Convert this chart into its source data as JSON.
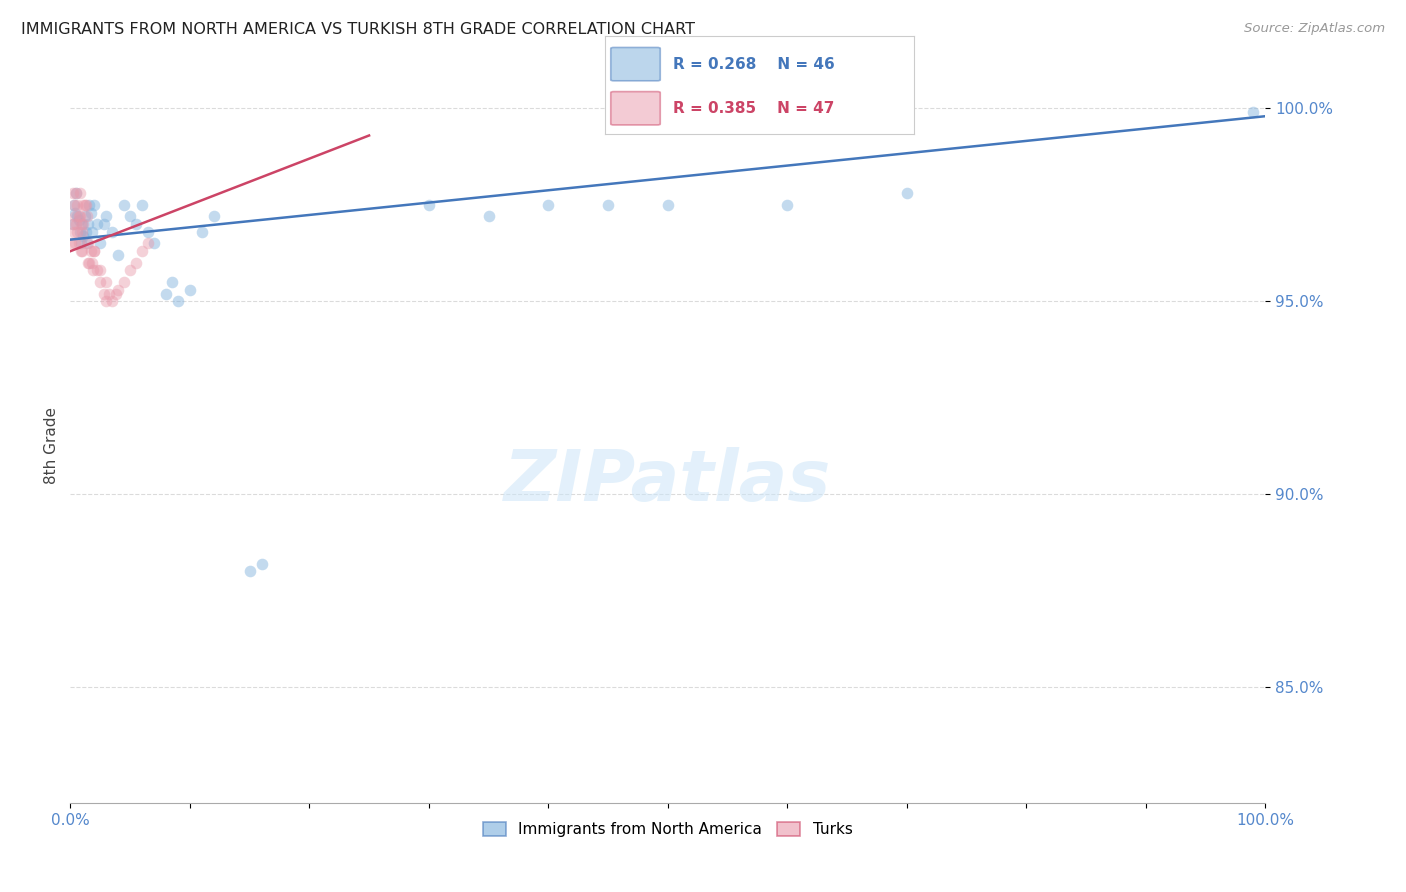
{
  "title": "IMMIGRANTS FROM NORTH AMERICA VS TURKISH 8TH GRADE CORRELATION CHART",
  "source": "Source: ZipAtlas.com",
  "ylabel": "8th Grade",
  "xlim": [
    0.0,
    1.0
  ],
  "ylim": [
    0.82,
    1.005
  ],
  "ytick_values": [
    0.85,
    0.9,
    0.95,
    1.0
  ],
  "ytick_labels": [
    "85.0%",
    "90.0%",
    "95.0%",
    "100.0%"
  ],
  "background_color": "#ffffff",
  "grid_color": "#cccccc",
  "title_color": "#222222",
  "source_color": "#999999",
  "blue_color": "#7aaedb",
  "pink_color": "#e899aa",
  "blue_line_color": "#4477bb",
  "pink_line_color": "#cc4466",
  "blue_tick_color": "#5588cc",
  "legend_blue_label": "Immigrants from North America",
  "legend_pink_label": "Turks",
  "corr_blue_R": "0.268",
  "corr_blue_N": "46",
  "corr_pink_R": "0.385",
  "corr_pink_N": "47",
  "blue_points_x": [
    0.002,
    0.003,
    0.004,
    0.005,
    0.006,
    0.007,
    0.008,
    0.009,
    0.01,
    0.011,
    0.012,
    0.013,
    0.014,
    0.015,
    0.016,
    0.017,
    0.018,
    0.02,
    0.022,
    0.025,
    0.028,
    0.03,
    0.035,
    0.04,
    0.045,
    0.05,
    0.055,
    0.06,
    0.065,
    0.07,
    0.08,
    0.085,
    0.09,
    0.1,
    0.11,
    0.12,
    0.15,
    0.16,
    0.3,
    0.35,
    0.4,
    0.45,
    0.5,
    0.6,
    0.7,
    0.99
  ],
  "blue_points_y": [
    0.97,
    0.975,
    0.973,
    0.978,
    0.972,
    0.971,
    0.968,
    0.965,
    0.97,
    0.967,
    0.972,
    0.968,
    0.965,
    0.97,
    0.975,
    0.973,
    0.968,
    0.975,
    0.97,
    0.965,
    0.97,
    0.972,
    0.968,
    0.962,
    0.975,
    0.972,
    0.97,
    0.975,
    0.968,
    0.965,
    0.952,
    0.955,
    0.95,
    0.953,
    0.968,
    0.972,
    0.88,
    0.882,
    0.975,
    0.972,
    0.975,
    0.975,
    0.975,
    0.975,
    0.978,
    0.999
  ],
  "pink_points_x": [
    0.001,
    0.002,
    0.002,
    0.003,
    0.003,
    0.004,
    0.004,
    0.005,
    0.005,
    0.006,
    0.006,
    0.007,
    0.007,
    0.008,
    0.008,
    0.009,
    0.009,
    0.01,
    0.01,
    0.011,
    0.011,
    0.012,
    0.013,
    0.014,
    0.015,
    0.016,
    0.017,
    0.018,
    0.019,
    0.02,
    0.022,
    0.025,
    0.028,
    0.03,
    0.032,
    0.035,
    0.038,
    0.04,
    0.045,
    0.05,
    0.055,
    0.06,
    0.065,
    0.015,
    0.02,
    0.025,
    0.03
  ],
  "pink_points_y": [
    0.965,
    0.978,
    0.97,
    0.975,
    0.968,
    0.972,
    0.965,
    0.978,
    0.97,
    0.975,
    0.968,
    0.972,
    0.965,
    0.978,
    0.972,
    0.97,
    0.963,
    0.968,
    0.963,
    0.975,
    0.97,
    0.975,
    0.975,
    0.972,
    0.965,
    0.96,
    0.963,
    0.96,
    0.958,
    0.963,
    0.958,
    0.955,
    0.952,
    0.95,
    0.952,
    0.95,
    0.952,
    0.953,
    0.955,
    0.958,
    0.96,
    0.963,
    0.965,
    0.96,
    0.963,
    0.958,
    0.955
  ],
  "marker_size": 70,
  "marker_alpha": 0.45,
  "line_width": 1.8
}
